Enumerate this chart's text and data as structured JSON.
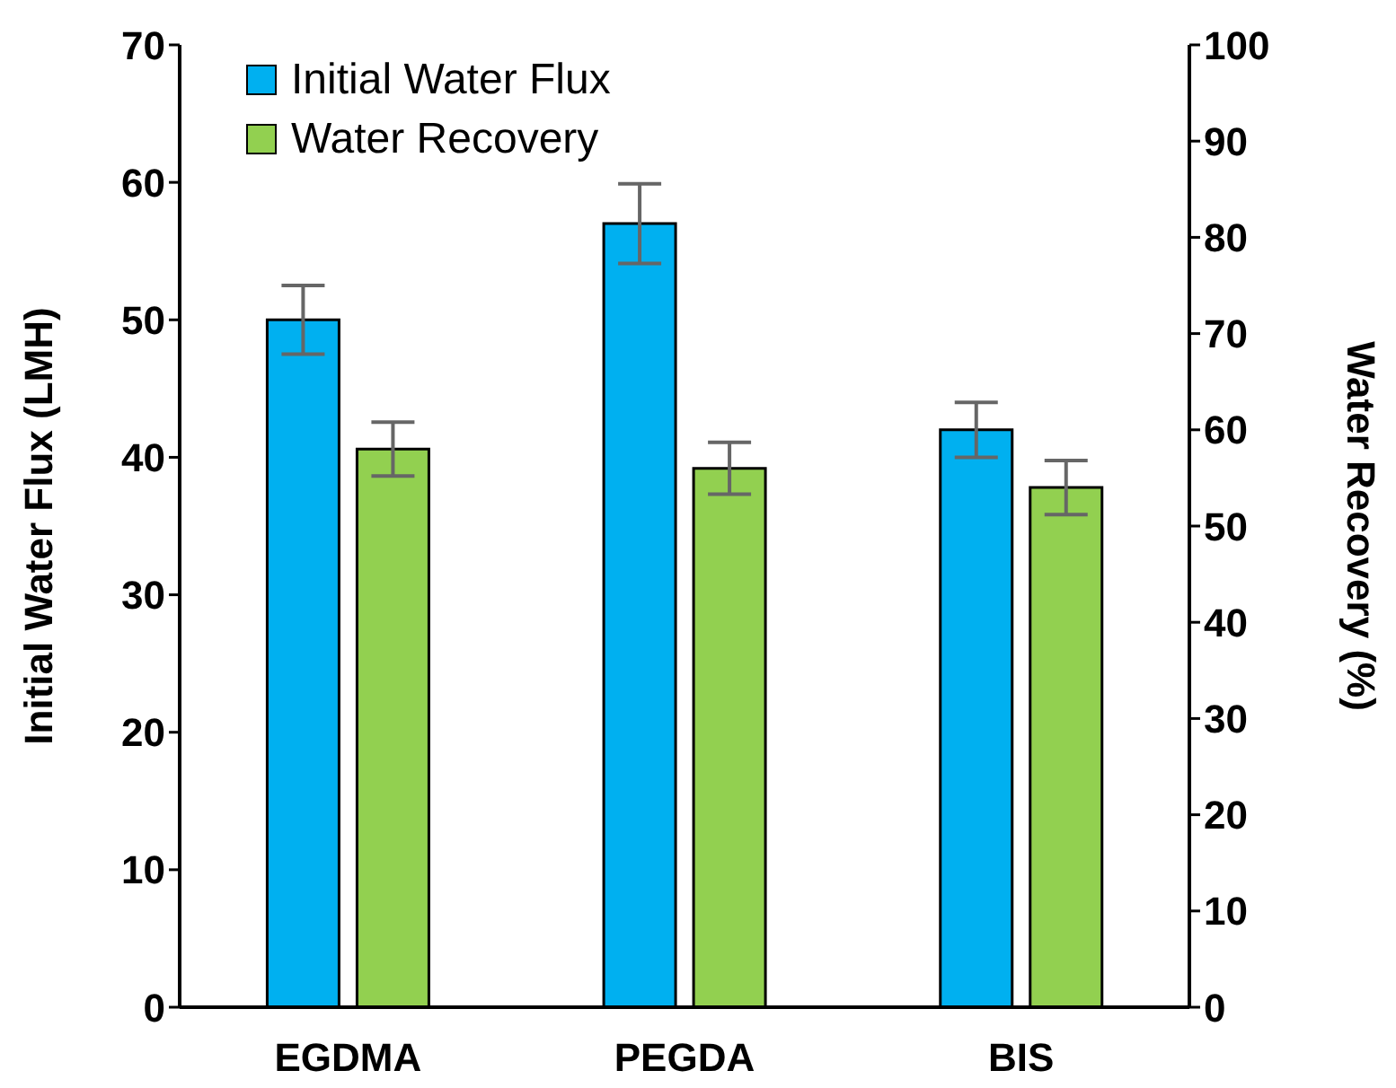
{
  "chart_data": {
    "type": "bar",
    "categories": [
      "EGDMA",
      "PEGDA",
      "BIS"
    ],
    "ylabel": "Initial Water Flux (LMH)",
    "y2label": "Water Recovery (%)",
    "ylim": [
      0,
      70
    ],
    "yticks": [
      0,
      10,
      20,
      30,
      40,
      50,
      60,
      70
    ],
    "y2lim": [
      0,
      100
    ],
    "y2ticks": [
      0,
      10,
      20,
      30,
      40,
      50,
      60,
      70,
      80,
      90,
      100
    ],
    "series": [
      {
        "name": "Initial Water Flux",
        "color": "#00b0f0",
        "values": [
          50,
          57,
          42
        ],
        "errors": [
          2.5,
          2.9,
          2
        ]
      },
      {
        "name": "Water Recovery",
        "color": "#92d050",
        "values": [
          58,
          56,
          54
        ],
        "errors": [
          2.8,
          2.7,
          2.8
        ],
        "axis": "y2"
      }
    ],
    "legend": "top left",
    "grid": false
  }
}
